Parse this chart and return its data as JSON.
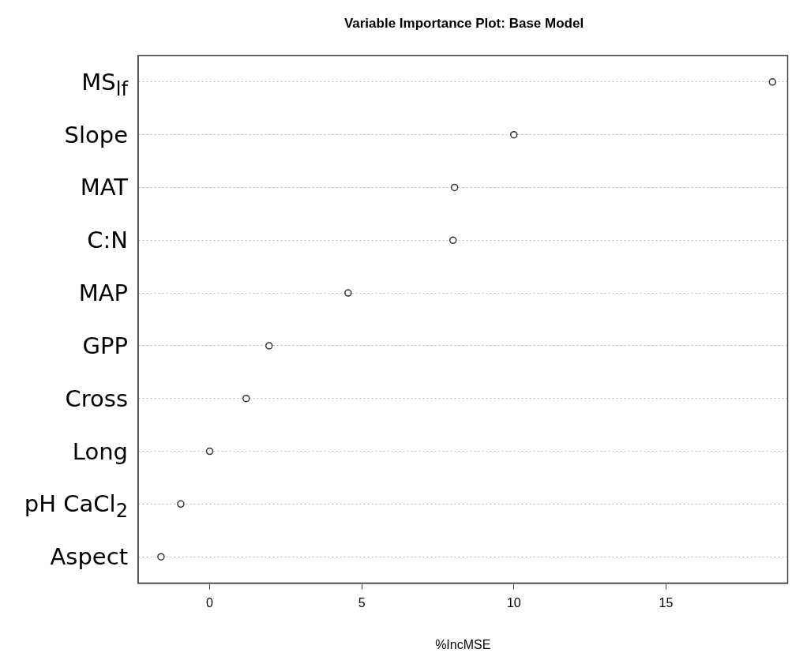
{
  "chart_data": {
    "type": "scatter",
    "title": "Variable Importance Plot: Base Model",
    "xlabel": "%IncMSE",
    "categories": [
      "MS$_{lf}$",
      "Slope",
      "MAT",
      "C:N",
      "MAP",
      "GPP",
      "Cross",
      "Long",
      "pH CaCl$_{2}$",
      "Aspect"
    ],
    "orientation": "horizontal",
    "values": [
      18.5,
      10.0,
      8.05,
      8.0,
      4.55,
      1.95,
      1.2,
      0.0,
      -0.95,
      -1.6
    ],
    "color": "#333333",
    "xlim": [
      -2.35,
      19
    ],
    "xticks": [
      0,
      5,
      10,
      15
    ],
    "grid": "y",
    "marker": "circle"
  }
}
